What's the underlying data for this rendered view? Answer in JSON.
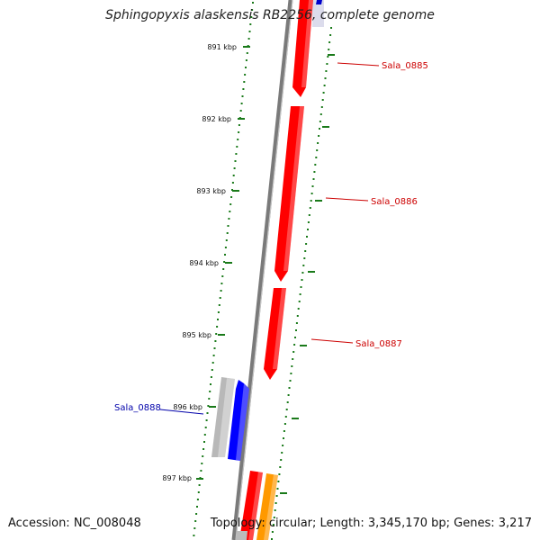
{
  "title": "Sphingopyxis alaskensis RB2256, complete genome",
  "footer": {
    "accession": "Accession: NC_008048",
    "summary": "Topology: circular; Length: 3,345,170 bp; Genes: 3,217"
  },
  "colors": {
    "backbone": "#7a7a7a",
    "tick": "#1a7a1a",
    "forward_gene": "#ff0000",
    "reverse_gene": "#0000ff",
    "pseudogene": "#bbbbbb",
    "other_feature": "#ff9900",
    "label_forward": "#cc0000",
    "label_reverse": "#0000aa"
  },
  "ticks": [
    {
      "label": "891 kbp"
    },
    {
      "label": "892 kbp"
    },
    {
      "label": "893 kbp"
    },
    {
      "label": "894 kbp"
    },
    {
      "label": "895 kbp"
    },
    {
      "label": "896 kbp"
    },
    {
      "label": "897 kbp"
    }
  ],
  "genes": [
    {
      "label": "Sala_0885",
      "strand": "forward"
    },
    {
      "label": "Sala_0886",
      "strand": "forward"
    },
    {
      "label": "Sala_0887",
      "strand": "forward"
    },
    {
      "label": "Sala_0888",
      "strand": "reverse"
    }
  ]
}
